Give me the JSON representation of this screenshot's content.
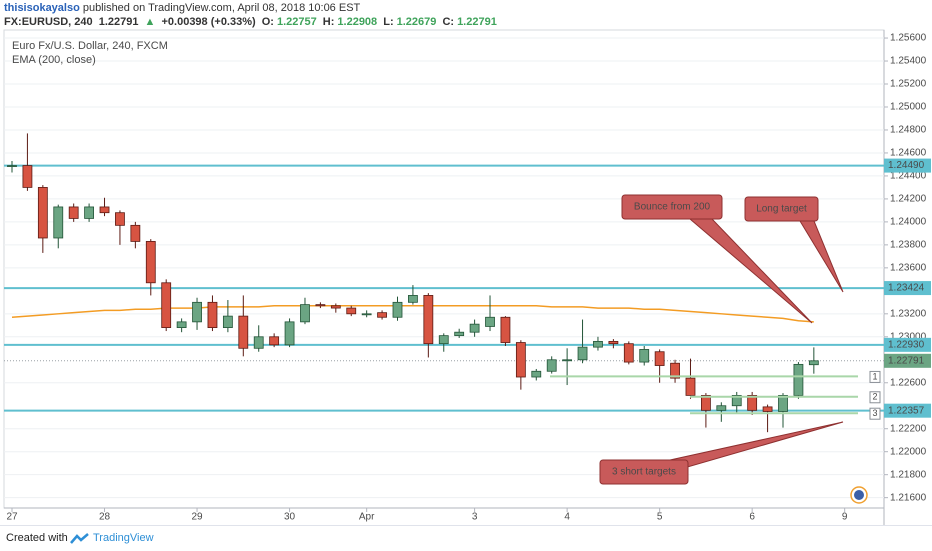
{
  "header": {
    "author": "thisisokayalso",
    "published": "published on TradingView.com, April 08, 2018 10:06 EST",
    "symbol": "FX:EURUSD, 240",
    "price": "1.22791",
    "arrow": "▲",
    "change": "+0.00398 (+0.33%)",
    "ohlc": [
      {
        "label": "O:",
        "value": "1.22757"
      },
      {
        "label": "H:",
        "value": "1.22908"
      },
      {
        "label": "L:",
        "value": "1.22679"
      },
      {
        "label": "C:",
        "value": "1.22791"
      }
    ]
  },
  "footer": {
    "created": "Created with",
    "brand": "TradingView"
  },
  "chart_data": {
    "type": "candlestick",
    "title": "Euro Fx/U.S. Dollar, 240, FXCM",
    "categories": [
      "27",
      null,
      null,
      null,
      null,
      null,
      "28",
      null,
      null,
      null,
      null,
      null,
      "29",
      null,
      null,
      null,
      null,
      null,
      "30",
      null,
      null,
      null,
      null,
      "Apr",
      null,
      null,
      null,
      null,
      null,
      null,
      "3",
      null,
      null,
      null,
      null,
      null,
      "4",
      null,
      null,
      null,
      null,
      null,
      "5",
      null,
      null,
      null,
      null,
      null,
      "6",
      null,
      null,
      null,
      null,
      null,
      "9"
    ],
    "open": [
      1.2449,
      1.2449,
      1.243,
      1.2386,
      1.2413,
      1.2403,
      1.2413,
      1.2408,
      1.2397,
      1.2383,
      1.2347,
      1.2308,
      1.2313,
      1.233,
      1.2308,
      1.2318,
      1.229,
      1.23,
      1.2293,
      1.2313,
      1.2328,
      1.2327,
      1.2325,
      1.232,
      1.2321,
      1.2317,
      1.233,
      1.2336,
      1.2294,
      1.2301,
      1.2304,
      1.2309,
      1.2317,
      1.2295,
      1.2265,
      1.227,
      1.228,
      1.228,
      1.2291,
      1.2296,
      1.2294,
      1.2278,
      1.2287,
      1.2277,
      1.2264,
      1.2249,
      1.2236,
      1.224,
      1.2249,
      1.2239,
      1.2235,
      1.2249,
      1.22757,
      null,
      null
    ],
    "high": [
      1.2453,
      1.2477,
      1.2432,
      1.2415,
      1.2416,
      1.2416,
      1.2421,
      1.241,
      1.24,
      1.2385,
      1.235,
      1.2316,
      1.2334,
      1.2336,
      1.2332,
      1.2336,
      1.231,
      1.2303,
      1.2316,
      1.2334,
      1.233,
      1.2329,
      1.2327,
      1.2323,
      1.2323,
      1.2335,
      1.2345,
      1.2338,
      1.2303,
      1.2307,
      1.2315,
      1.2336,
      1.2318,
      1.2297,
      1.2272,
      1.2283,
      1.229,
      1.2315,
      1.23,
      1.2298,
      1.2296,
      1.2292,
      1.2289,
      1.228,
      1.2281,
      1.2251,
      1.2243,
      1.2252,
      1.2252,
      1.2241,
      1.2251,
      1.2278,
      1.22908,
      null,
      null
    ],
    "low": [
      1.2443,
      1.2427,
      1.2373,
      1.2377,
      1.24,
      1.24,
      1.2405,
      1.238,
      1.2377,
      1.2336,
      1.2305,
      1.2304,
      1.2306,
      1.2305,
      1.2304,
      1.2283,
      1.2287,
      1.2291,
      1.2291,
      1.2311,
      1.2325,
      1.2321,
      1.2318,
      1.2317,
      1.2315,
      1.2314,
      1.2328,
      1.2282,
      1.2287,
      1.2299,
      1.23,
      1.2305,
      1.2292,
      1.2254,
      1.2262,
      1.2268,
      1.2258,
      1.2277,
      1.2288,
      1.229,
      1.2276,
      1.2275,
      1.226,
      1.226,
      1.2246,
      1.2221,
      1.2226,
      1.2234,
      1.2232,
      1.2217,
      1.2221,
      1.2246,
      1.22679,
      null,
      null
    ],
    "close": [
      1.2449,
      1.243,
      1.2386,
      1.2413,
      1.2403,
      1.2413,
      1.2408,
      1.2397,
      1.2383,
      1.2347,
      1.2308,
      1.2313,
      1.233,
      1.2308,
      1.2318,
      1.229,
      1.23,
      1.2293,
      1.2313,
      1.2328,
      1.2327,
      1.2325,
      1.232,
      1.232,
      1.2317,
      1.233,
      1.2336,
      1.2294,
      1.2301,
      1.2304,
      1.2311,
      1.2317,
      1.2295,
      1.2265,
      1.227,
      1.228,
      1.228,
      1.2291,
      1.2296,
      1.2294,
      1.2278,
      1.2289,
      1.2275,
      1.2264,
      1.2249,
      1.2236,
      1.224,
      1.2249,
      1.2236,
      1.2235,
      1.2249,
      1.2276,
      1.22791,
      null,
      null
    ],
    "up_color": "#6ba583",
    "down_color": "#d75442",
    "series": [
      {
        "name": "EMA (200, close)",
        "color": "#f39c24",
        "values": [
          1.2317,
          1.2318,
          1.2319,
          1.232,
          1.2321,
          1.2322,
          1.2323,
          1.2323,
          1.2324,
          1.2324,
          1.2325,
          1.2325,
          1.2325,
          1.2326,
          1.2326,
          1.2326,
          1.2326,
          1.2327,
          1.2327,
          1.2327,
          1.2327,
          1.2327,
          1.2327,
          1.2327,
          1.2327,
          1.2327,
          1.2327,
          1.2327,
          1.2327,
          1.2327,
          1.2327,
          1.2327,
          1.2327,
          1.2327,
          1.2327,
          1.2326,
          1.2326,
          1.2326,
          1.2325,
          1.2325,
          1.2325,
          1.2324,
          1.2324,
          1.2323,
          1.2322,
          1.2321,
          1.232,
          1.2319,
          1.2318,
          1.2317,
          1.2316,
          1.2314,
          1.2313,
          null,
          null
        ]
      }
    ],
    "ylim": [
      1.2151,
      1.2567
    ],
    "yticks": [
      {
        "value": 1.256,
        "label": "1.25600"
      },
      {
        "value": 1.254,
        "label": "1.25400"
      },
      {
        "value": 1.252,
        "label": "1.25200"
      },
      {
        "value": 1.25,
        "label": "1.25000"
      },
      {
        "value": 1.248,
        "label": "1.24800"
      },
      {
        "value": 1.246,
        "label": "1.24600"
      },
      {
        "value": 1.244,
        "label": "1.24400"
      },
      {
        "value": 1.242,
        "label": "1.24200"
      },
      {
        "value": 1.24,
        "label": "1.24000"
      },
      {
        "value": 1.238,
        "label": "1.23800"
      },
      {
        "value": 1.236,
        "label": "1.23600"
      },
      {
        "value": 1.232,
        "label": "1.23200"
      },
      {
        "value": 1.23,
        "label": "1.23000"
      },
      {
        "value": 1.226,
        "label": "1.22600"
      },
      {
        "value": 1.222,
        "label": "1.22200"
      },
      {
        "value": 1.22,
        "label": "1.22000"
      },
      {
        "value": 1.218,
        "label": "1.21800"
      },
      {
        "value": 1.216,
        "label": "1.21600"
      }
    ],
    "grid": true,
    "levels": [
      {
        "value": 1.2449,
        "label": "1.24490"
      },
      1.23424,
      {
        "value": 1.2293,
        "label": "1.22930"
      },
      1.22357
    ],
    "level_color": "#5fbfcf",
    "last_price": 1.22791,
    "targets": [
      {
        "value": 1.22655,
        "label": "1"
      },
      {
        "value": 1.22478,
        "label": "2"
      },
      {
        "value": 1.22335,
        "label": "3"
      }
    ],
    "target_color": "#a9d6a9",
    "annotations": [
      "Bounce from 200",
      "Long target",
      "3 short targets"
    ]
  }
}
